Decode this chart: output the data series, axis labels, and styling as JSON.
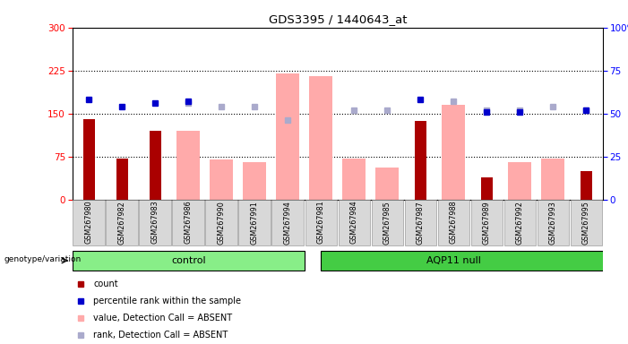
{
  "title": "GDS3395 / 1440643_at",
  "samples": [
    "GSM267980",
    "GSM267982",
    "GSM267983",
    "GSM267986",
    "GSM267990",
    "GSM267991",
    "GSM267994",
    "GSM267981",
    "GSM267984",
    "GSM267985",
    "GSM267987",
    "GSM267988",
    "GSM267989",
    "GSM267992",
    "GSM267993",
    "GSM267995"
  ],
  "n_control": 7,
  "n_aqp11": 9,
  "count": [
    140,
    72,
    120,
    null,
    null,
    null,
    null,
    null,
    null,
    null,
    137,
    null,
    38,
    null,
    null,
    50
  ],
  "percentile_rank": [
    58,
    54,
    56,
    57,
    null,
    null,
    null,
    null,
    null,
    null,
    58,
    null,
    51,
    51,
    null,
    52
  ],
  "value_absent": [
    null,
    null,
    null,
    120,
    70,
    65,
    220,
    215,
    72,
    56,
    null,
    165,
    null,
    65,
    72,
    null
  ],
  "rank_absent": [
    null,
    null,
    null,
    56,
    54,
    54,
    46,
    null,
    52,
    52,
    null,
    57,
    52,
    52,
    54,
    52
  ],
  "ylim_left": [
    0,
    300
  ],
  "ylim_right": [
    0,
    100
  ],
  "yticks_left": [
    0,
    75,
    150,
    225,
    300
  ],
  "yticks_right": [
    0,
    25,
    50,
    75,
    100
  ],
  "grid_values": [
    75,
    150,
    225
  ],
  "count_color": "#aa0000",
  "percentile_color": "#0000cc",
  "value_absent_color": "#ffaaaa",
  "rank_absent_color": "#aaaacc",
  "bg_color": "#d8d8d8",
  "control_color": "#88ee88",
  "aqp11_color": "#44cc44",
  "label_count": "count",
  "label_pct": "percentile rank within the sample",
  "label_val_abs": "value, Detection Call = ABSENT",
  "label_rank_abs": "rank, Detection Call = ABSENT",
  "genotype_label": "genotype/variation"
}
